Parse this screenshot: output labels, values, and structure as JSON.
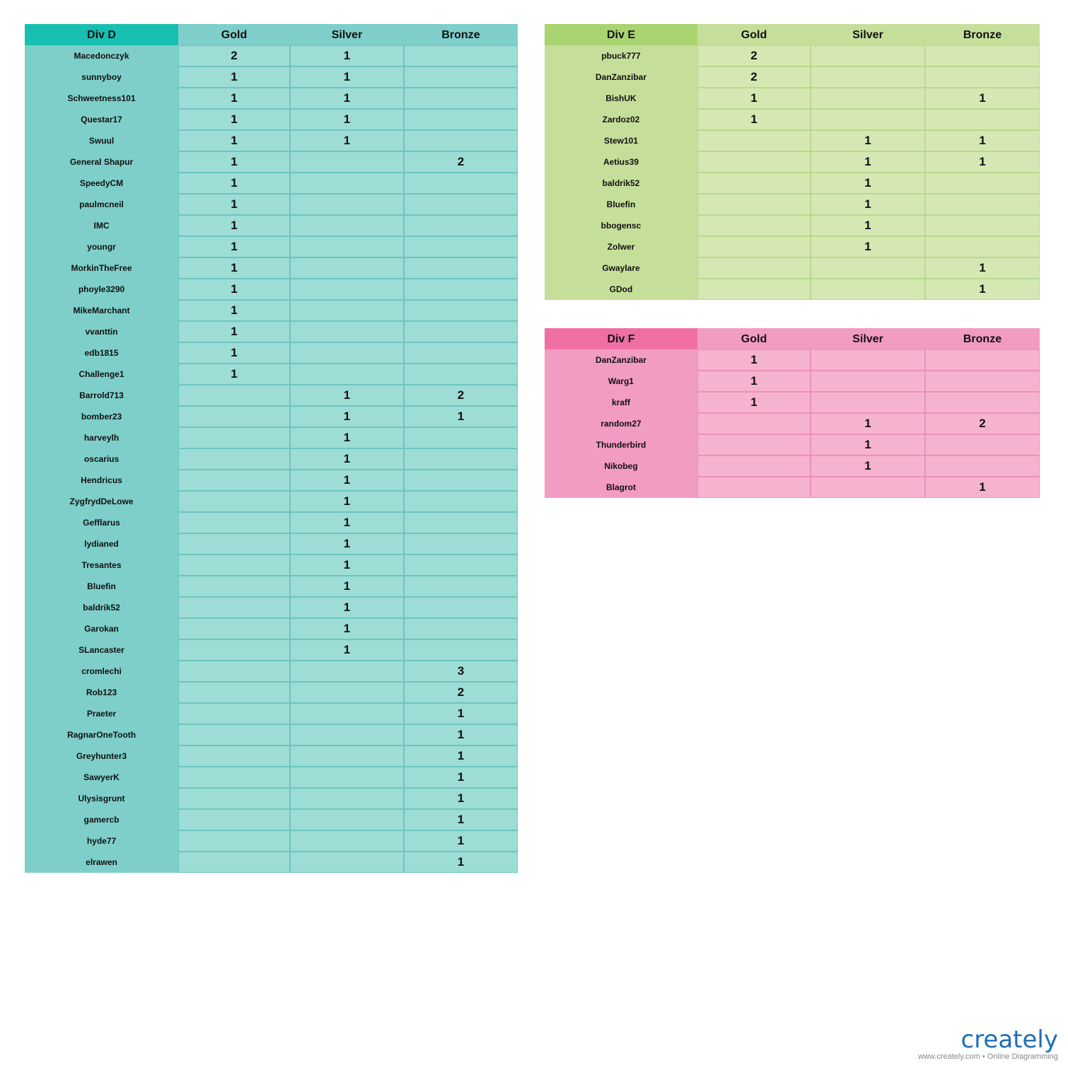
{
  "tables": [
    {
      "title": "Div D",
      "columns": [
        "Gold",
        "Silver",
        "Bronze"
      ],
      "rows": [
        [
          "Macedonczyk",
          2,
          1,
          null
        ],
        [
          "sunnyboy",
          1,
          1,
          null
        ],
        [
          "Schweetness101",
          1,
          1,
          null
        ],
        [
          "Questar17",
          1,
          1,
          null
        ],
        [
          "Swuul",
          1,
          1,
          null
        ],
        [
          "General Shapur",
          1,
          null,
          2
        ],
        [
          "SpeedyCM",
          1,
          null,
          null
        ],
        [
          "paulmcneil",
          1,
          null,
          null
        ],
        [
          "IMC",
          1,
          null,
          null
        ],
        [
          "youngr",
          1,
          null,
          null
        ],
        [
          "MorkinTheFree",
          1,
          null,
          null
        ],
        [
          "phoyle3290",
          1,
          null,
          null
        ],
        [
          "MikeMarchant",
          1,
          null,
          null
        ],
        [
          "vvanttin",
          1,
          null,
          null
        ],
        [
          "edb1815",
          1,
          null,
          null
        ],
        [
          "Challenge1",
          1,
          null,
          null
        ],
        [
          "Barrold713",
          null,
          1,
          2
        ],
        [
          "bomber23",
          null,
          1,
          1
        ],
        [
          "harveylh",
          null,
          1,
          null
        ],
        [
          "oscarius",
          null,
          1,
          null
        ],
        [
          "Hendricus",
          null,
          1,
          null
        ],
        [
          "ZygfrydDeLowe",
          null,
          1,
          null
        ],
        [
          "Gefflarus",
          null,
          1,
          null
        ],
        [
          "lydianed",
          null,
          1,
          null
        ],
        [
          "Tresantes",
          null,
          1,
          null
        ],
        [
          "Bluefin",
          null,
          1,
          null
        ],
        [
          "baldrik52",
          null,
          1,
          null
        ],
        [
          "Garokan",
          null,
          1,
          null
        ],
        [
          "SLancaster",
          null,
          1,
          null
        ],
        [
          "cromlechi",
          null,
          null,
          3
        ],
        [
          "Rob123",
          null,
          null,
          2
        ],
        [
          "Praeter",
          null,
          null,
          1
        ],
        [
          "RagnarOneTooth",
          null,
          null,
          1
        ],
        [
          "Greyhunter3",
          null,
          null,
          1
        ],
        [
          "SawyerK",
          null,
          null,
          1
        ],
        [
          "Ulysisgrunt",
          null,
          null,
          1
        ],
        [
          "gamercb",
          null,
          null,
          1
        ],
        [
          "hyde77",
          null,
          null,
          1
        ],
        [
          "elrawen",
          null,
          null,
          1
        ]
      ]
    },
    {
      "title": "Div E",
      "columns": [
        "Gold",
        "Silver",
        "Bronze"
      ],
      "rows": [
        [
          "pbuck777",
          2,
          null,
          null
        ],
        [
          "DanZanzibar",
          2,
          null,
          null
        ],
        [
          "BishUK",
          1,
          null,
          1
        ],
        [
          "Zardoz02",
          1,
          null,
          null
        ],
        [
          "Stew101",
          null,
          1,
          1
        ],
        [
          "Aetius39",
          null,
          1,
          1
        ],
        [
          "baldrik52",
          null,
          1,
          null
        ],
        [
          "Bluefin",
          null,
          1,
          null
        ],
        [
          "bbogensc",
          null,
          1,
          null
        ],
        [
          "Zolwer",
          null,
          1,
          null
        ],
        [
          "Gwaylare",
          null,
          null,
          1
        ],
        [
          "GDod",
          null,
          null,
          1
        ]
      ]
    },
    {
      "title": "Div F",
      "columns": [
        "Gold",
        "Silver",
        "Bronze"
      ],
      "rows": [
        [
          "DanZanzibar",
          1,
          null,
          null
        ],
        [
          "Warg1",
          1,
          null,
          null
        ],
        [
          "kraff",
          1,
          null,
          null
        ],
        [
          "random27",
          null,
          1,
          2
        ],
        [
          "Thunderbird",
          null,
          1,
          null
        ],
        [
          "Nikobeg",
          null,
          1,
          null
        ],
        [
          "Blagrot",
          null,
          null,
          1
        ]
      ]
    }
  ],
  "footer": {
    "logo": "creately",
    "tagline": "www.creately.com • Online Diagramming"
  }
}
